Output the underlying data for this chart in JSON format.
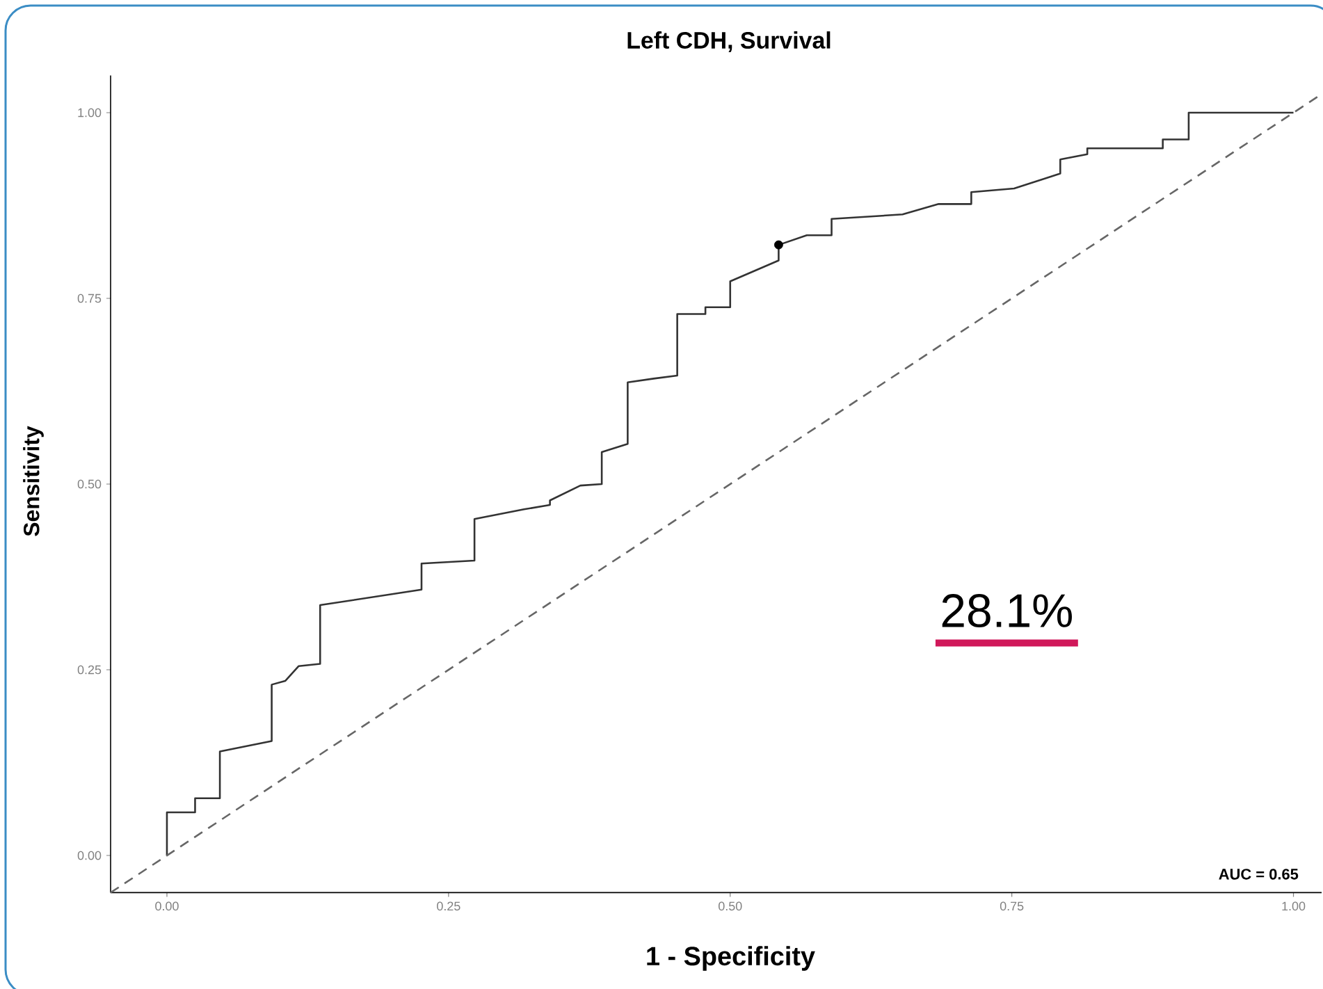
{
  "chart_data": {
    "type": "line",
    "title": "Left CDH, Survival",
    "xlabel": "1 - Specificity",
    "ylabel": "Sensitivity",
    "xlim": [
      -0.05,
      1.025
    ],
    "ylim": [
      -0.05,
      1.05
    ],
    "xticks": [
      {
        "value": 0,
        "label": "0.00"
      },
      {
        "value": 0.25,
        "label": "0.25"
      },
      {
        "value": 0.5,
        "label": "0.50"
      },
      {
        "value": 0.75,
        "label": "0.75"
      },
      {
        "value": 1,
        "label": "1.00"
      }
    ],
    "yticks": [
      {
        "value": 0,
        "label": "0.00"
      },
      {
        "value": 0.25,
        "label": "0.25"
      },
      {
        "value": 0.5,
        "label": "0.50"
      },
      {
        "value": 0.75,
        "label": "0.75"
      },
      {
        "value": 1,
        "label": "1.00"
      }
    ],
    "grid": false,
    "series": [
      {
        "color": "#333333",
        "line_style": "solid",
        "x": [
          0,
          0,
          0.025,
          0.025,
          0.047,
          0.047,
          0.093,
          0.093,
          0.105,
          0.117,
          0.136,
          0.136,
          0.226,
          0.226,
          0.273,
          0.273,
          0.317,
          0.34,
          0.34,
          0.367,
          0.386,
          0.386,
          0.409,
          0.409,
          0.432,
          0.453,
          0.453,
          0.478,
          0.478,
          0.5,
          0.5,
          0.543,
          0.543,
          0.568,
          0.59,
          0.59,
          0.653,
          0.685,
          0.714,
          0.714,
          0.752,
          0.793,
          0.793,
          0.817,
          0.817,
          0.884,
          0.884,
          0.907,
          0.907,
          1
        ],
        "values": [
          0,
          0.058,
          0.058,
          0.077,
          0.077,
          0.14,
          0.154,
          0.23,
          0.235,
          0.255,
          0.258,
          0.337,
          0.358,
          0.393,
          0.397,
          0.453,
          0.466,
          0.472,
          0.478,
          0.498,
          0.5,
          0.543,
          0.554,
          0.637,
          0.642,
          0.646,
          0.729,
          0.729,
          0.738,
          0.738,
          0.773,
          0.801,
          0.822,
          0.835,
          0.835,
          0.857,
          0.863,
          0.877,
          0.877,
          0.893,
          0.898,
          0.918,
          0.937,
          0.944,
          0.952,
          0.952,
          0.964,
          0.964,
          1,
          1
        ]
      },
      {
        "type": "scatter",
        "color": "#000000",
        "marker": "circle",
        "x": [
          0.543
        ],
        "values": [
          0.822
        ]
      },
      {
        "color": "#666666",
        "line_style": "dashed",
        "x": [
          -0.05,
          1.025
        ],
        "values": [
          -0.05,
          1.025
        ]
      }
    ],
    "annotations": [
      "28.1%",
      "AUC = 0.65"
    ]
  }
}
